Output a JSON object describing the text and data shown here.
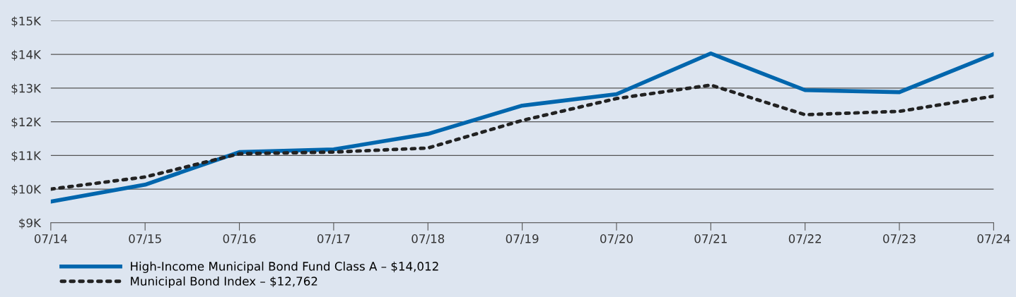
{
  "chart_data": {
    "type": "line",
    "categories": [
      "07/14",
      "07/15",
      "07/16",
      "07/17",
      "07/18",
      "07/19",
      "07/20",
      "07/21",
      "07/22",
      "07/23",
      "07/24"
    ],
    "series": [
      {
        "name": "High-Income Municipal Bond Fund Class A – $14,012",
        "color": "#0066ad",
        "line_style": "solid",
        "values": [
          9.63,
          10.13,
          11.1,
          11.18,
          11.64,
          12.48,
          12.82,
          14.03,
          12.94,
          12.88,
          14.01
        ]
      },
      {
        "name": "Municipal Bond Index – $12,762",
        "color": "#222222",
        "line_style": "dotted",
        "values": [
          10.0,
          10.36,
          11.05,
          11.1,
          11.22,
          12.04,
          12.69,
          13.09,
          12.21,
          12.31,
          12.76
        ]
      }
    ],
    "ylim": [
      9,
      15
    ],
    "yticks": [
      {
        "value": 9,
        "label": "$9K"
      },
      {
        "value": 10,
        "label": "$10K"
      },
      {
        "value": 11,
        "label": "$11K"
      },
      {
        "value": 12,
        "label": "$12K"
      },
      {
        "value": 13,
        "label": "$13K"
      },
      {
        "value": 14,
        "label": "$14K"
      },
      {
        "value": 15,
        "label": "$15K"
      }
    ],
    "grid": "y",
    "legend": "bottom"
  }
}
